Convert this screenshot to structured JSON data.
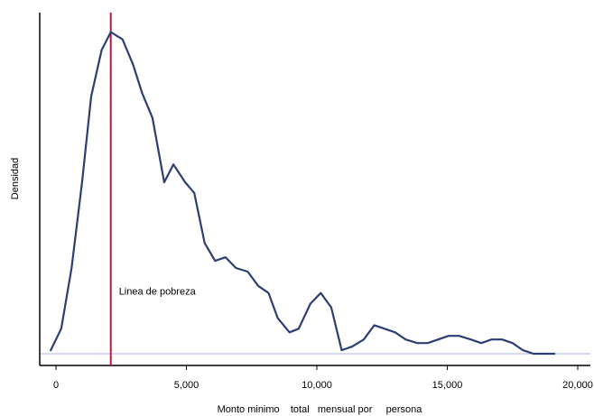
{
  "chart_data": {
    "type": "line",
    "xlabel": "Monto minimo    total   mensual por     persona",
    "ylabel": "Densidad",
    "xlim": [
      -700,
      20600
    ],
    "ylim": [
      0,
      1.0
    ],
    "x_ticks": [
      0,
      5000,
      10000,
      15000,
      20000
    ],
    "x_tick_labels": [
      "0",
      "5,000",
      "10,000",
      "15,000",
      "20,000"
    ],
    "grid": false,
    "series": [
      {
        "color": "#2b3f73",
        "x": [
          -200,
          200,
          600,
          1000,
          1350,
          1750,
          2100,
          2550,
          2950,
          3300,
          3700,
          4150,
          4500,
          4950,
          5300,
          5700,
          6100,
          6500,
          6900,
          7350,
          7750,
          8150,
          8500,
          8950,
          9300,
          9750,
          10150,
          10550,
          10950,
          11350,
          11800,
          12200,
          12600,
          13000,
          13400,
          13850,
          14250,
          14650,
          15050,
          15450,
          15900,
          16300,
          16700,
          17100,
          17500,
          17900,
          18300,
          19100
        ],
        "y": [
          0.02,
          0.08,
          0.25,
          0.49,
          0.73,
          0.86,
          0.91,
          0.89,
          0.82,
          0.74,
          0.67,
          0.49,
          0.54,
          0.49,
          0.46,
          0.32,
          0.27,
          0.28,
          0.25,
          0.24,
          0.2,
          0.18,
          0.11,
          0.07,
          0.08,
          0.15,
          0.18,
          0.14,
          0.02,
          0.03,
          0.05,
          0.09,
          0.08,
          0.07,
          0.05,
          0.04,
          0.04,
          0.05,
          0.06,
          0.06,
          0.05,
          0.04,
          0.05,
          0.05,
          0.04,
          0.02,
          0.01,
          0.01
        ]
      }
    ],
    "annotations": [
      {
        "type": "vline",
        "x": 2100,
        "color": "#c0143c",
        "label": "Linea  de  pobreza",
        "label_y": 0.185
      }
    ],
    "baseline": {
      "y": 0.01,
      "color": "#c8d0e8"
    }
  }
}
